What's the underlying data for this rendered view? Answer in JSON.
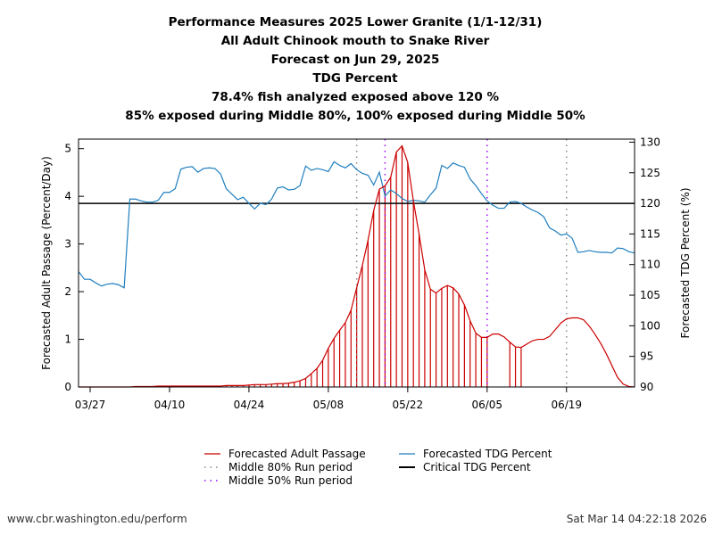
{
  "titles": [
    "Performance Measures 2025 Lower Granite (1/1-12/31)",
    "All Adult Chinook mouth to Snake River",
    "Forecast on Jun 29, 2025",
    "TDG Percent",
    "78.4% fish analyzed exposed above 120 %",
    "85% exposed during Middle 80%, 100% exposed during Middle 50%"
  ],
  "footer": {
    "left": "www.cbr.washington.edu/perform",
    "right": "Sat Mar 14 04:22:18 2026"
  },
  "chart_data": {
    "type": "line",
    "ylabel": "Forecasted Adult Passage (Percent/Day)",
    "ylabel_right": "Forecasted TDG Percent (%)",
    "ylim": [
      0,
      5.2
    ],
    "ylim_right": [
      90,
      130.5
    ],
    "yticks": [
      0,
      1,
      2,
      3,
      4,
      5
    ],
    "yticks_right": [
      90,
      95,
      100,
      105,
      110,
      115,
      120,
      125,
      130
    ],
    "xticks": [
      "03/27",
      "04/10",
      "04/24",
      "05/08",
      "05/22",
      "06/05",
      "06/19"
    ],
    "grid": false,
    "x": [
      "03/25",
      "03/26",
      "03/27",
      "03/28",
      "03/29",
      "03/30",
      "03/31",
      "04/01",
      "04/02",
      "04/03",
      "04/04",
      "04/05",
      "04/06",
      "04/07",
      "04/08",
      "04/09",
      "04/10",
      "04/11",
      "04/12",
      "04/13",
      "04/14",
      "04/15",
      "04/16",
      "04/17",
      "04/18",
      "04/19",
      "04/20",
      "04/21",
      "04/22",
      "04/23",
      "04/24",
      "04/25",
      "04/26",
      "04/27",
      "04/28",
      "04/29",
      "04/30",
      "05/01",
      "05/02",
      "05/03",
      "05/04",
      "05/05",
      "05/06",
      "05/07",
      "05/08",
      "05/09",
      "05/10",
      "05/11",
      "05/12",
      "05/13",
      "05/14",
      "05/15",
      "05/16",
      "05/17",
      "05/18",
      "05/19",
      "05/20",
      "05/21",
      "05/22",
      "05/23",
      "05/24",
      "05/25",
      "05/26",
      "05/27",
      "05/28",
      "05/29",
      "05/30",
      "05/31",
      "06/01",
      "06/02",
      "06/03",
      "06/04",
      "06/05",
      "06/06",
      "06/07",
      "06/08",
      "06/09",
      "06/10",
      "06/11",
      "06/12",
      "06/13",
      "06/14",
      "06/15",
      "06/16",
      "06/17",
      "06/18",
      "06/19",
      "06/20",
      "06/21",
      "06/22",
      "06/23",
      "06/24",
      "06/25",
      "06/26",
      "06/27",
      "06/28",
      "06/29",
      "06/30",
      "07/01"
    ],
    "series": [
      {
        "name": "Forecasted Adult Passage",
        "axis": "left",
        "color": "#cc0000",
        "values": [
          0,
          0,
          0,
          0,
          0,
          0,
          0,
          0,
          0,
          0,
          0.01,
          0.01,
          0.01,
          0.01,
          0.02,
          0.02,
          0.02,
          0.02,
          0.02,
          0.02,
          0.02,
          0.02,
          0.02,
          0.02,
          0.02,
          0.02,
          0.03,
          0.03,
          0.03,
          0.03,
          0.04,
          0.05,
          0.05,
          0.05,
          0.06,
          0.07,
          0.07,
          0.08,
          0.1,
          0.13,
          0.18,
          0.28,
          0.39,
          0.56,
          0.81,
          1.02,
          1.19,
          1.35,
          1.61,
          2.08,
          2.55,
          3.08,
          3.7,
          4.15,
          4.22,
          4.4,
          4.93,
          5.06,
          4.71,
          3.9,
          3.21,
          2.46,
          2.05,
          1.97,
          2.07,
          2.13,
          2.08,
          1.95,
          1.72,
          1.39,
          1.13,
          1.04,
          1.04,
          1.11,
          1.11,
          1.05,
          0.94,
          0.84,
          0.83,
          0.9,
          0.97,
          1.0,
          1.0,
          1.06,
          1.2,
          1.34,
          1.43,
          1.45,
          1.45,
          1.41,
          1.28,
          1.11,
          0.92,
          0.7,
          0.45,
          0.2,
          0.06,
          0.01,
          0
        ],
        "stem_ranges": [
          [
            "04/08",
            "06/05"
          ],
          [
            "06/09",
            "06/11"
          ]
        ]
      },
      {
        "name": "Forecasted TDG Percent",
        "axis": "right",
        "color": "#1f7fbf",
        "values": [
          108.8,
          107.6,
          107.6,
          107.0,
          106.5,
          106.8,
          106.9,
          106.7,
          106.2,
          120.7,
          120.7,
          120.4,
          120.2,
          120.2,
          120.5,
          121.8,
          121.8,
          122.4,
          125.6,
          125.9,
          126.0,
          125.1,
          125.7,
          125.8,
          125.7,
          124.8,
          122.4,
          121.5,
          120.6,
          121.0,
          120.0,
          119.1,
          120.0,
          119.8,
          120.7,
          122.5,
          122.7,
          122.2,
          122.3,
          122.9,
          126.1,
          125.4,
          125.7,
          125.5,
          125.2,
          126.8,
          126.2,
          125.8,
          126.5,
          125.5,
          124.9,
          124.6,
          123.0,
          125.1,
          121.2,
          122.2,
          121.6,
          120.8,
          120.3,
          120.5,
          120.4,
          120.2,
          121.4,
          122.5,
          126.2,
          125.7,
          126.6,
          126.2,
          125.9,
          124.0,
          122.9,
          121.6,
          120.4,
          119.7,
          119.2,
          119.2,
          120.2,
          120.3,
          120.0,
          119.4,
          118.9,
          118.5,
          117.8,
          116.0,
          115.5,
          114.8,
          115.0,
          114.3,
          112.0,
          112.1,
          112.3,
          112.1,
          112.0,
          112.0,
          111.9,
          112.7,
          112.6,
          112.1,
          111.9
        ]
      },
      {
        "name": "Critical TDG Percent",
        "axis": "right",
        "color": "#000000",
        "value": 120
      }
    ],
    "vlines": [
      {
        "name": "Middle 80% Run period",
        "color": "#888888",
        "dates": [
          "05/13",
          "06/19"
        ]
      },
      {
        "name": "Middle 50% Run period",
        "color": "#9900ff",
        "dates": [
          "05/18",
          "06/05"
        ]
      }
    ],
    "legend": {
      "placement": "bottom",
      "entries": [
        "Forecasted Adult Passage",
        "Middle 80% Run period",
        "Middle 50% Run period",
        "Forecasted TDG Percent",
        "Critical TDG Percent"
      ]
    }
  }
}
